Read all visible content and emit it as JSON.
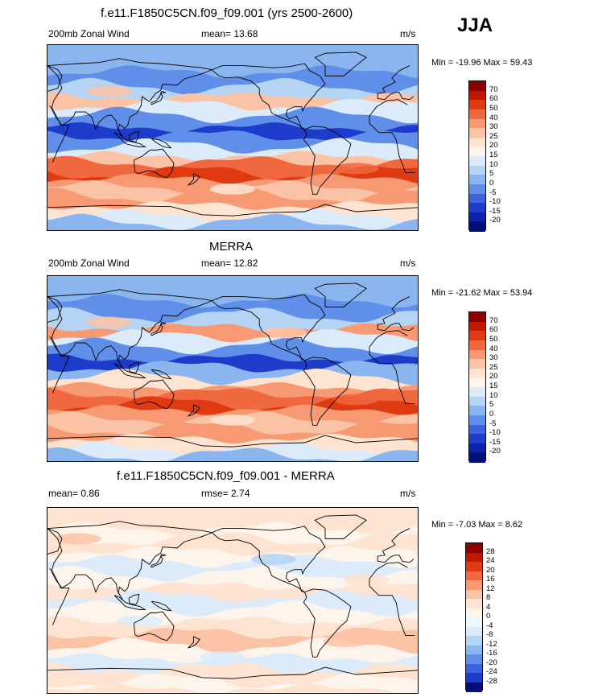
{
  "season": "JJA",
  "panels": [
    {
      "id": "model",
      "title": "f.e11.F1850C5CN.f09_f09.001 (yrs 2500-2600)",
      "left_label": "200mb Zonal Wind",
      "mean_label": "mean=  13.68",
      "units": "m/s",
      "minmax": "Min = -19.96 Max =  59.43",
      "colorbar": {
        "labels": [
          "70",
          "60",
          "50",
          "40",
          "30",
          "25",
          "20",
          "15",
          "10",
          "5",
          "0",
          "-5",
          "-10",
          "-15",
          "-20"
        ],
        "colors": [
          "#8c0000",
          "#c01800",
          "#e03a12",
          "#f06840",
          "#f79a73",
          "#fbc3a6",
          "#fde3d0",
          "#fdf4ec",
          "#dcebfa",
          "#b5d4f4",
          "#8ab5ee",
          "#5f8fe8",
          "#3a63dc",
          "#1e3ccb",
          "#0d22a8",
          "#030e78"
        ]
      },
      "bands": [
        {
          "lat": 82,
          "color": "#8ab5ee"
        },
        {
          "lat": 64,
          "color": "#5f8fe8"
        },
        {
          "lat": 50,
          "color": "#b5d4f4"
        },
        {
          "lat": 40,
          "color": "#fbc3a6"
        },
        {
          "lat": 32,
          "color": "#dcebfa"
        },
        {
          "lat": 22,
          "color": "#5f8fe8"
        },
        {
          "lat": 10,
          "color": "#1e3ccb"
        },
        {
          "lat": 2,
          "color": "#5f8fe8"
        },
        {
          "lat": -8,
          "color": "#dcebfa"
        },
        {
          "lat": -18,
          "color": "#fbc3a6"
        },
        {
          "lat": -24,
          "color": "#f06840"
        },
        {
          "lat": -34,
          "color": "#e03a12"
        },
        {
          "lat": -40,
          "color": "#f79a73"
        },
        {
          "lat": -48,
          "color": "#fbc3a6"
        },
        {
          "lat": -56,
          "color": "#f79a73"
        },
        {
          "lat": -66,
          "color": "#fde3d0"
        },
        {
          "lat": -76,
          "color": "#dcebfa"
        },
        {
          "lat": -82,
          "color": "#8ab5ee"
        }
      ]
    },
    {
      "id": "obs",
      "title": "MERRA",
      "left_label": "200mb Zonal Wind",
      "mean_label": "mean=  12.82",
      "units": "m/s",
      "minmax": "Min = -21.62 Max =  53.94",
      "colorbar": {
        "labels": [
          "70",
          "60",
          "50",
          "40",
          "30",
          "25",
          "20",
          "15",
          "10",
          "5",
          "0",
          "-5",
          "-10",
          "-15",
          "-20"
        ],
        "colors": [
          "#8c0000",
          "#c01800",
          "#e03a12",
          "#f06840",
          "#f79a73",
          "#fbc3a6",
          "#fde3d0",
          "#fdf4ec",
          "#dcebfa",
          "#b5d4f4",
          "#8ab5ee",
          "#5f8fe8",
          "#3a63dc",
          "#1e3ccb",
          "#0d22a8",
          "#030e78"
        ]
      },
      "bands": [
        {
          "lat": 82,
          "color": "#8ab5ee"
        },
        {
          "lat": 66,
          "color": "#5f8fe8"
        },
        {
          "lat": 52,
          "color": "#b5d4f4"
        },
        {
          "lat": 40,
          "color": "#f79a73"
        },
        {
          "lat": 32,
          "color": "#dcebfa"
        },
        {
          "lat": 22,
          "color": "#5f8fe8"
        },
        {
          "lat": 10,
          "color": "#1e3ccb"
        },
        {
          "lat": 2,
          "color": "#8ab5ee"
        },
        {
          "lat": -8,
          "color": "#fde3d0"
        },
        {
          "lat": -18,
          "color": "#f79a73"
        },
        {
          "lat": -24,
          "color": "#f06840"
        },
        {
          "lat": -34,
          "color": "#e03a12"
        },
        {
          "lat": -40,
          "color": "#f79a73"
        },
        {
          "lat": -48,
          "color": "#fbc3a6"
        },
        {
          "lat": -58,
          "color": "#f79a73"
        },
        {
          "lat": -68,
          "color": "#fde3d0"
        },
        {
          "lat": -78,
          "color": "#dcebfa"
        },
        {
          "lat": -84,
          "color": "#8ab5ee"
        }
      ]
    },
    {
      "id": "diff",
      "title": "f.e11.F1850C5CN.f09_f09.001 - MERRA",
      "left_label": "mean=   0.86",
      "mean_label": "rmse=   2.74",
      "units": "m/s",
      "minmax": "Min =  -7.03 Max =   8.62",
      "colorbar": {
        "labels": [
          "28",
          "24",
          "20",
          "16",
          "12",
          "8",
          "4",
          "0",
          "-4",
          "-8",
          "-12",
          "-16",
          "-20",
          "-24",
          "-28"
        ],
        "colors": [
          "#8c0000",
          "#c01800",
          "#e03a12",
          "#f06840",
          "#f79a73",
          "#fbc3a6",
          "#fde3d0",
          "#fdf4ec",
          "#eef5fc",
          "#dcebfa",
          "#b5d4f4",
          "#8ab5ee",
          "#5f8fe8",
          "#3a63dc",
          "#1e3ccb",
          "#030e78"
        ]
      },
      "bands": [
        {
          "lat": 82,
          "color": "#fde3d0"
        },
        {
          "lat": 70,
          "color": "#fdf4ec"
        },
        {
          "lat": 60,
          "color": "#fde3d0"
        },
        {
          "lat": 48,
          "color": "#fdf4ec"
        },
        {
          "lat": 38,
          "color": "#dcebfa"
        },
        {
          "lat": 26,
          "color": "#fdf4ec"
        },
        {
          "lat": 14,
          "color": "#fde3d0"
        },
        {
          "lat": 4,
          "color": "#dcebfa"
        },
        {
          "lat": -8,
          "color": "#fdf4ec"
        },
        {
          "lat": -20,
          "color": "#fde3d0"
        },
        {
          "lat": -32,
          "color": "#fbc3a6"
        },
        {
          "lat": -44,
          "color": "#fdf4ec"
        },
        {
          "lat": -56,
          "color": "#dcebfa"
        },
        {
          "lat": -66,
          "color": "#fde3d0"
        },
        {
          "lat": -78,
          "color": "#fdf4ec"
        },
        {
          "lat": -86,
          "color": "#fde3d0"
        }
      ]
    }
  ]
}
